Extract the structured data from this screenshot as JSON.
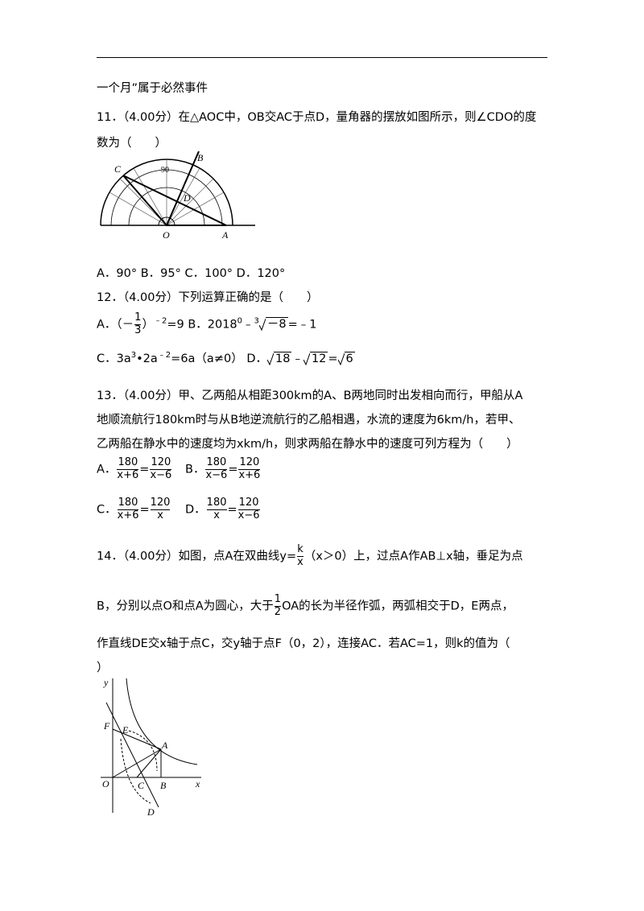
{
  "header_fragment": "一个月”属于必然事件",
  "q11": {
    "stem": "11．（4.00分）在△AOC中，OB交AC于点D，量角器的摆放如图所示，则∠CDO的度数为（　　）",
    "figure_labels": [
      "C",
      "B",
      "90",
      "D",
      "O",
      "A"
    ],
    "options": [
      "A．90°",
      "B．95°",
      "C．100°",
      "D．120°"
    ]
  },
  "q12": {
    "stem": "12．（4.00分）下列运算正确的是（　　）",
    "a": {
      "label": "A．",
      "open": "（－",
      "num": "1",
      "den": "3",
      "close": "）",
      "exp": "﹣2",
      "rest": "=9"
    },
    "b": {
      "label": "B．2018",
      "exp": "0",
      "minus": "﹣",
      "index": "3",
      "radicand": "－8",
      "rest": "=﹣1"
    },
    "c": {
      "label": "C．3a",
      "e1": "3",
      "t2": "•2a",
      "e2": "﹣2",
      "rest": "=6a（a≠0）"
    },
    "d": {
      "label": "D．",
      "r1": "18",
      "op": "﹣",
      "r2": "12",
      "eq": "=",
      "r3": "6"
    }
  },
  "q13": {
    "stem": [
      "13．（4.00分）甲、乙两船从相距300km的A、B两地同时出发相向而行，甲船从A",
      "地顺流航行180km时与从B地逆流航行的乙船相遇，水流的速度为6km/h，若甲、",
      "乙两船在静水中的速度均为xkm/h，则求两船在静水中的速度可列方程为（　　）"
    ],
    "options": [
      {
        "label": "A．",
        "left": [
          "180",
          "x+6"
        ],
        "eq": "=",
        "right": [
          "120",
          "x−6"
        ]
      },
      {
        "label": "B．",
        "left": [
          "180",
          "x−6"
        ],
        "eq": "=",
        "right": [
          "120",
          "x+6"
        ]
      },
      {
        "label": "C．",
        "left": [
          "180",
          "x+6"
        ],
        "eq": "=",
        "right": [
          "120",
          "x"
        ]
      },
      {
        "label": "D．",
        "left": [
          "180",
          "x"
        ],
        "eq": "=",
        "right": [
          "120",
          "x−6"
        ]
      }
    ]
  },
  "q14": {
    "stem_1": "14．（4.00分）如图，点A在双曲线y=",
    "k_frac": [
      "k",
      "x"
    ],
    "stem_2": "（x＞0）上，过点A作AB⊥x轴，垂足为点",
    "stem_3": "B，分别以点O和点A为圆心，大于",
    "half": [
      "1",
      "2"
    ],
    "stem_4": "OA的长为半径作弧，两弧相交于D，E两点，",
    "stem_5": "作直线DE交x轴于点C，交y轴于点F（0，2），连接AC．若AC=1，则k的值为（",
    "stem_6": "）",
    "figure_labels": [
      "y",
      "F",
      "E",
      "A",
      "O",
      "C",
      "B",
      "x",
      "D"
    ]
  }
}
